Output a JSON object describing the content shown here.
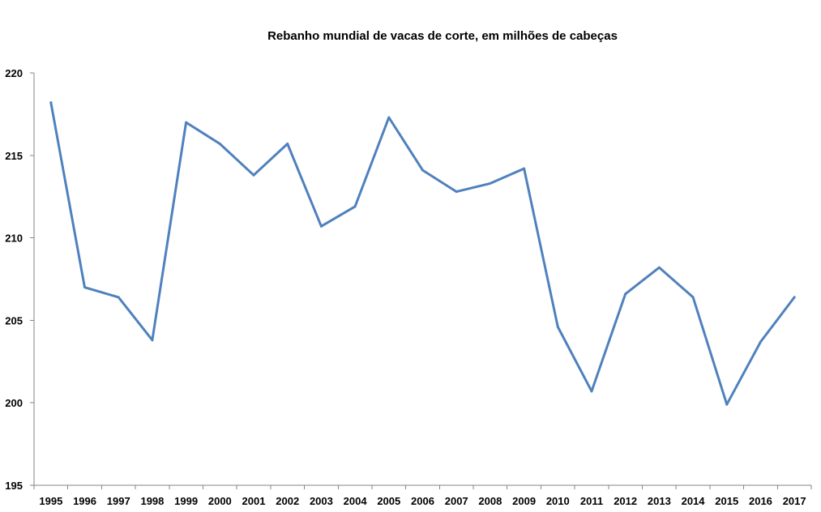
{
  "chart_data": {
    "type": "line",
    "title": "Rebanho mundial de vacas de corte, em milhões de cabeças",
    "xlabel": "",
    "ylabel": "",
    "categories": [
      "1995",
      "1996",
      "1997",
      "1998",
      "1999",
      "2000",
      "2001",
      "2002",
      "2003",
      "2004",
      "2005",
      "2006",
      "2007",
      "2008",
      "2009",
      "2010",
      "2011",
      "2012",
      "2013",
      "2014",
      "2015",
      "2016",
      "2017"
    ],
    "series": [
      {
        "values": [
          218.2,
          207.0,
          206.4,
          203.8,
          217.0,
          215.7,
          213.8,
          215.7,
          210.7,
          211.9,
          217.3,
          214.1,
          212.8,
          213.3,
          214.2,
          204.6,
          200.7,
          206.6,
          208.2,
          206.4,
          199.9,
          203.7,
          206.4
        ],
        "color": "#4F81BD"
      }
    ],
    "ylim": [
      195,
      220
    ],
    "yticks": [
      "195",
      "200",
      "205",
      "210",
      "215",
      "220"
    ],
    "grid": false,
    "legend": "none"
  }
}
